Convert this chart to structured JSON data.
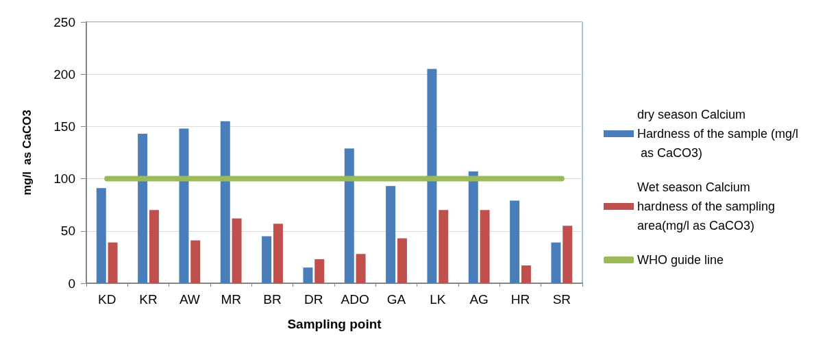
{
  "chart_data": {
    "type": "bar",
    "xlabel": "Sampling point",
    "ylabel": "mg/l  as CaCO3",
    "categories": [
      "KD",
      "KR",
      "AW",
      "MR",
      "BR",
      "DR",
      "ADO",
      "GA",
      "LK",
      "AG",
      "HR",
      "SR"
    ],
    "series": [
      {
        "name": "dry season Calcium Hardness of the sample (mg/l as CaCO3)",
        "color": "#4a7ebb",
        "values": [
          91,
          143,
          148,
          155,
          45,
          15,
          129,
          93,
          205,
          107,
          79,
          39
        ]
      },
      {
        "name": "Wet season Calcium hardness of the sampling area(mg/l as CaCO3)",
        "color": "#c0504d",
        "values": [
          39,
          70,
          41,
          62,
          57,
          23,
          28,
          43,
          70,
          70,
          17,
          55
        ]
      },
      {
        "name": "WHO guide line",
        "type": "line",
        "color": "#9bbb59",
        "values": [
          100,
          100,
          100,
          100,
          100,
          100,
          100,
          100,
          100,
          100,
          100,
          100
        ]
      }
    ],
    "ylim": [
      0,
      250
    ],
    "yticks": [
      0,
      50,
      100,
      150,
      200,
      250
    ],
    "grid": "y",
    "legend": "right"
  }
}
